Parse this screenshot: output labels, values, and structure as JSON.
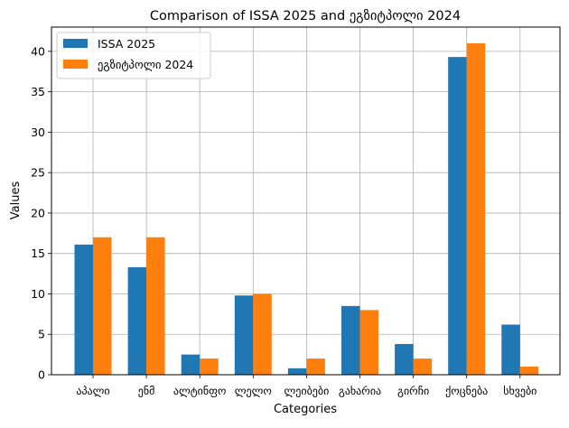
{
  "chart_data": {
    "type": "bar",
    "title": "Comparison of ISSA 2025 and ეგზიტპოლი 2024",
    "xlabel": "Categories",
    "ylabel": "Values",
    "categories": [
      "აპალი",
      "ენმ",
      "ალტინფო",
      "ლელო",
      "ლეიბები",
      "გახარია",
      "გირჩი",
      "ქოცნება",
      "სხვები"
    ],
    "series": [
      {
        "name": "ISSA 2025",
        "color": "#1f77b4",
        "values": [
          16.1,
          13.3,
          2.5,
          9.8,
          0.8,
          8.5,
          3.8,
          39.3,
          6.2
        ]
      },
      {
        "name": "ეგზიტპოლი 2024",
        "color": "#ff7f0e",
        "values": [
          17.0,
          17.0,
          2.0,
          10.0,
          2.0,
          8.0,
          2.0,
          41.0,
          1.0
        ]
      }
    ],
    "ylim": [
      0,
      43
    ],
    "yticks": [
      0,
      5,
      10,
      15,
      20,
      25,
      30,
      35,
      40
    ],
    "grid": true,
    "legend_position": "top-left"
  }
}
